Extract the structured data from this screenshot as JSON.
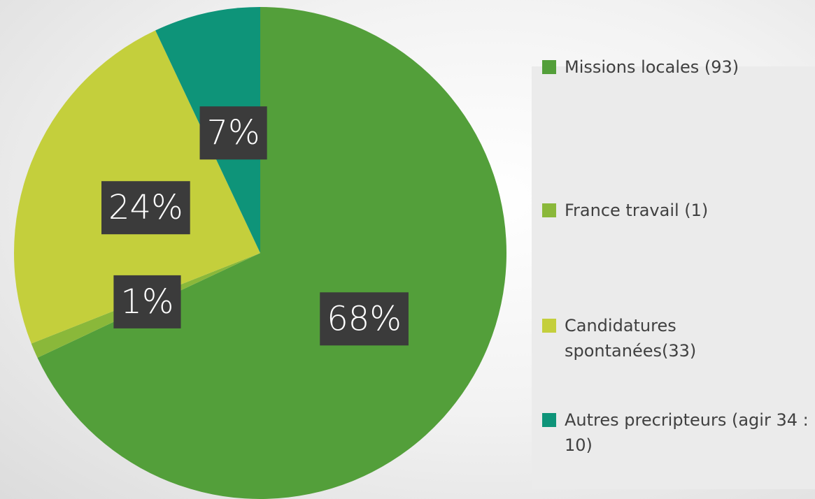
{
  "chart_data": {
    "type": "pie",
    "categories": [
      "Missions locales (93)",
      "France travail (1)",
      "Candidatures spontanées(33)",
      "Autres precripteurs (agir 34 : 10)"
    ],
    "values": [
      68,
      1,
      24,
      7
    ],
    "value_labels": [
      "68%",
      "1%",
      "24%",
      "7%"
    ],
    "colors": [
      "#539f3a",
      "#8ab83a",
      "#c4cf3c",
      "#0e9479"
    ],
    "legend": "right"
  }
}
